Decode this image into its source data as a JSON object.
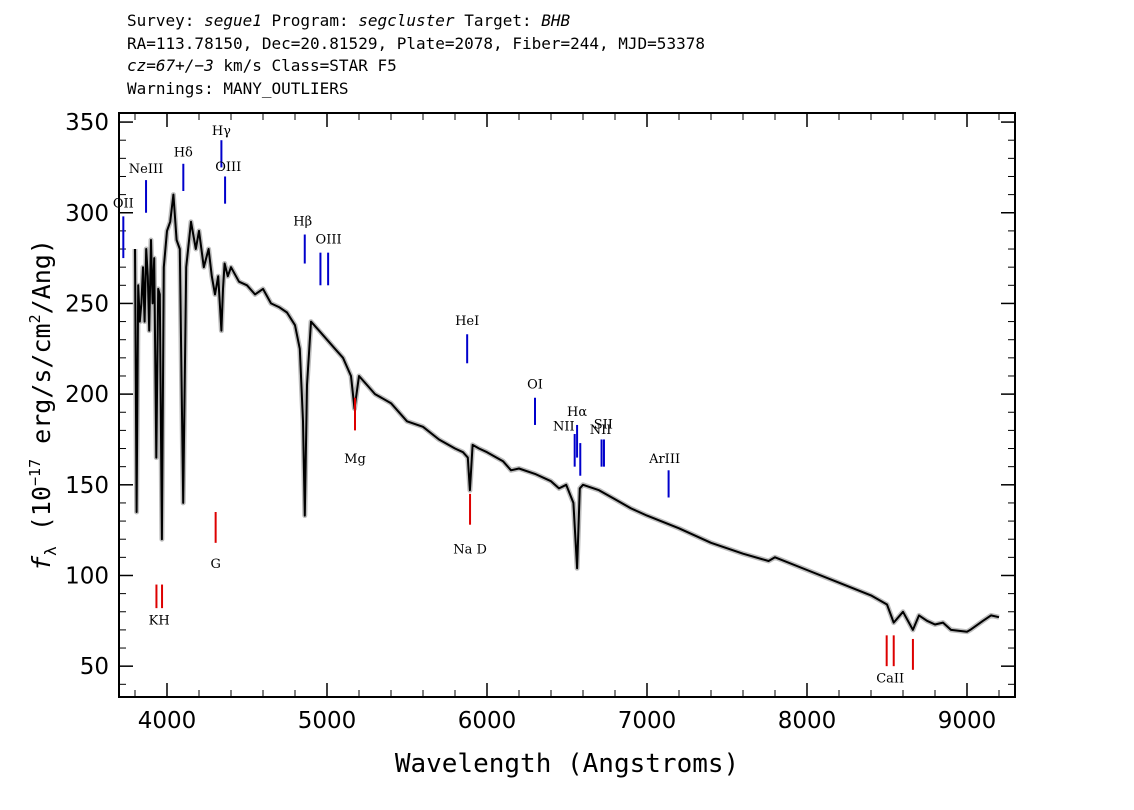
{
  "header": {
    "line1": {
      "survey_label": "Survey:",
      "survey": "segue1",
      "program_label": "Program:",
      "program": "segcluster",
      "target_label": "Target:",
      "target": "BHB"
    },
    "line2": "RA=113.78150, Dec=20.81529, Plate=2078, Fiber=244, MJD=53378",
    "line3": {
      "cz": "cz=67+/−3",
      "rest": " km/s Class=STAR F5"
    },
    "line4": "Warnings: MANY_OUTLIERS"
  },
  "chart_data": {
    "type": "line",
    "xlabel": "Wavelength (Angstroms)",
    "ylabel": "f_λ (10^−17 erg/s/cm^2/Ang)",
    "xlim": [
      3700,
      9300
    ],
    "ylim": [
      33,
      355
    ],
    "xticks": [
      4000,
      5000,
      6000,
      7000,
      8000,
      9000
    ],
    "yticks": [
      50,
      100,
      150,
      200,
      250,
      300,
      350
    ],
    "series": [
      {
        "style": "black-line-with-grey-error",
        "x": [
          3800,
          3810,
          3820,
          3830,
          3840,
          3850,
          3860,
          3870,
          3880,
          3889,
          3900,
          3910,
          3920,
          3933,
          3945,
          3955,
          3968,
          3980,
          4000,
          4020,
          4040,
          4060,
          4080,
          4101,
          4120,
          4150,
          4180,
          4200,
          4230,
          4260,
          4280,
          4300,
          4320,
          4340,
          4350,
          4360,
          4380,
          4400,
          4450,
          4500,
          4550,
          4600,
          4650,
          4700,
          4750,
          4800,
          4830,
          4850,
          4861,
          4875,
          4900,
          4950,
          5000,
          5050,
          5100,
          5150,
          5172,
          5200,
          5250,
          5300,
          5400,
          5500,
          5600,
          5700,
          5800,
          5850,
          5880,
          5893,
          5910,
          5950,
          6000,
          6100,
          6150,
          6200,
          6300,
          6400,
          6450,
          6495,
          6540,
          6563,
          6580,
          6600,
          6700,
          6800,
          6900,
          7000,
          7200,
          7400,
          7600,
          7760,
          7800,
          8000,
          8200,
          8400,
          8500,
          8542,
          8600,
          8662,
          8700,
          8750,
          8800,
          8850,
          8900,
          9000,
          9020,
          9100,
          9150,
          9200
        ],
        "y": [
          280,
          135,
          260,
          240,
          250,
          270,
          240,
          280,
          265,
          235,
          285,
          250,
          275,
          165,
          258,
          255,
          120,
          270,
          290,
          295,
          310,
          285,
          280,
          140,
          270,
          295,
          280,
          290,
          270,
          280,
          265,
          255,
          265,
          235,
          258,
          272,
          265,
          270,
          262,
          260,
          255,
          258,
          250,
          248,
          245,
          238,
          225,
          185,
          133,
          205,
          240,
          235,
          230,
          225,
          220,
          210,
          192,
          210,
          205,
          200,
          195,
          185,
          182,
          175,
          170,
          168,
          165,
          147,
          172,
          170,
          168,
          163,
          158,
          159,
          156,
          152,
          148,
          150,
          140,
          104,
          148,
          150,
          147,
          142,
          137,
          133,
          126,
          118,
          112,
          108,
          110,
          103,
          96,
          89,
          84,
          74,
          80,
          70,
          78,
          75,
          73,
          74,
          70,
          69,
          70,
          75,
          78,
          77
        ]
      }
    ],
    "lines": [
      {
        "name": "OII",
        "x": 3727,
        "y": [
          275,
          298
        ],
        "color": "blue"
      },
      {
        "name": "NeIII",
        "x": 3869,
        "y": [
          300,
          318
        ],
        "color": "blue"
      },
      {
        "name": "Hδ",
        "x": 4102,
        "y": [
          312,
          327
        ],
        "color": "blue"
      },
      {
        "name": "Hγ",
        "x": 4340,
        "y": [
          325,
          340
        ],
        "color": "blue"
      },
      {
        "name": "OIII",
        "x": 4363,
        "y": [
          305,
          320
        ],
        "color": "blue"
      },
      {
        "name": "Hβ",
        "x": 4861,
        "y": [
          272,
          288
        ],
        "color": "blue"
      },
      {
        "name": "OIII",
        "x": 4959,
        "y": [
          260,
          278
        ],
        "color": "blue"
      },
      {
        "name": "OIII",
        "x": 5007,
        "y": [
          260,
          278
        ],
        "color": "blue"
      },
      {
        "name": "HeI",
        "x": 5876,
        "y": [
          217,
          233
        ],
        "color": "blue"
      },
      {
        "name": "OI",
        "x": 6300,
        "y": [
          183,
          198
        ],
        "color": "blue"
      },
      {
        "name": "NII",
        "x": 6548,
        "y": [
          160,
          178
        ],
        "color": "blue"
      },
      {
        "name": "Hα",
        "x": 6563,
        "y": [
          165,
          183
        ],
        "color": "blue"
      },
      {
        "name": "NII",
        "x": 6583,
        "y": [
          155,
          173
        ],
        "color": "blue"
      },
      {
        "name": "SII",
        "x": 6716,
        "y": [
          160,
          175
        ],
        "color": "blue"
      },
      {
        "name": "SII",
        "x": 6731,
        "y": [
          160,
          175
        ],
        "color": "blue"
      },
      {
        "name": "ArIII",
        "x": 7135,
        "y": [
          143,
          158
        ],
        "color": "blue"
      },
      {
        "name": "K",
        "x": 3934,
        "y": [
          82,
          95
        ],
        "color": "red"
      },
      {
        "name": "H",
        "x": 3969,
        "y": [
          82,
          95
        ],
        "color": "red"
      },
      {
        "name": "G",
        "x": 4304,
        "y": [
          118,
          135
        ],
        "color": "red"
      },
      {
        "name": "Mg",
        "x": 5175,
        "y": [
          180,
          198
        ],
        "color": "red"
      },
      {
        "name": "Na D",
        "x": 5894,
        "y": [
          128,
          145
        ],
        "color": "red"
      },
      {
        "name": "CaII",
        "x": 8498,
        "y": [
          50,
          67
        ],
        "color": "red"
      },
      {
        "name": "CaII",
        "x": 8542,
        "y": [
          50,
          67
        ],
        "color": "red"
      },
      {
        "name": "CaII",
        "x": 8662,
        "y": [
          48,
          65
        ],
        "color": "red"
      }
    ],
    "labels": [
      {
        "text": "OII",
        "x": 3727,
        "y": 303
      },
      {
        "text": "NeIII",
        "x": 3869,
        "y": 322
      },
      {
        "text": "Hδ",
        "x": 4102,
        "y": 331
      },
      {
        "text": "Hγ",
        "x": 4340,
        "y": 343
      },
      {
        "text": "OIII",
        "x": 4383,
        "y": 323
      },
      {
        "text": "Hβ",
        "x": 4848,
        "y": 293
      },
      {
        "text": "OIII",
        "x": 5010,
        "y": 283
      },
      {
        "text": "HeI",
        "x": 5876,
        "y": 238
      },
      {
        "text": "OI",
        "x": 6300,
        "y": 203
      },
      {
        "text": "NII",
        "x": 6480,
        "y": 180
      },
      {
        "text": "Hα",
        "x": 6563,
        "y": 188
      },
      {
        "text": "NII",
        "x": 6710,
        "y": 178
      },
      {
        "text": "SII",
        "x": 6727,
        "y": 181
      },
      {
        "text": "ArIII",
        "x": 7110,
        "y": 162
      },
      {
        "text": "KH",
        "x": 3951,
        "y": 73
      },
      {
        "text": "G",
        "x": 4304,
        "y": 104
      },
      {
        "text": "Mg",
        "x": 5175,
        "y": 162
      },
      {
        "text": "Na  D",
        "x": 5894,
        "y": 112
      },
      {
        "text": "CaII",
        "x": 8520,
        "y": 41
      }
    ]
  }
}
